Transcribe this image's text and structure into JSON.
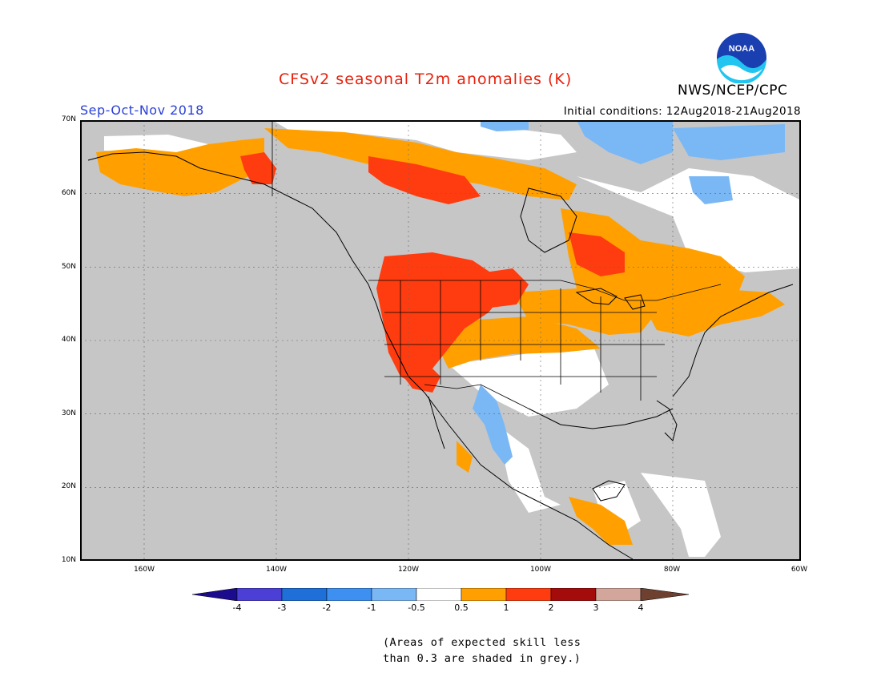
{
  "title": "CFSv2 seasonal T2m anomalies (K)",
  "agency": "NWS/NCEP/CPC",
  "logo_text": "NOAA",
  "season": "Sep-Oct-Nov 2018",
  "initial_conditions": "Initial conditions: 12Aug2018-21Aug2018",
  "lat_labels": [
    "70N",
    "60N",
    "50N",
    "40N",
    "30N",
    "20N",
    "10N"
  ],
  "lon_labels": [
    "160W",
    "140W",
    "120W",
    "100W",
    "80W",
    "60W"
  ],
  "colorbar": {
    "ticks": [
      "-4",
      "-3",
      "-2",
      "-1",
      "-0.5",
      "0.5",
      "1",
      "2",
      "3",
      "4"
    ],
    "colors": [
      "#1a0c8c",
      "#4b3fd6",
      "#1f6fd9",
      "#3d8ff0",
      "#7ab8f5",
      "#ffffff",
      "#ffa000",
      "#ff3c0f",
      "#a40c0c",
      "#d2a69a",
      "#6e4030"
    ]
  },
  "map_colors": {
    "grey_skill": "#c6c6c6",
    "warm_05_1": "#ffa000",
    "warm_1_2": "#ff3c0f",
    "cool_1_05": "#7ab8f5",
    "neutral": "#ffffff"
  },
  "note_line1": "(Areas of expected skill less",
  "note_line2": "than 0.3 are shaded in grey.)"
}
